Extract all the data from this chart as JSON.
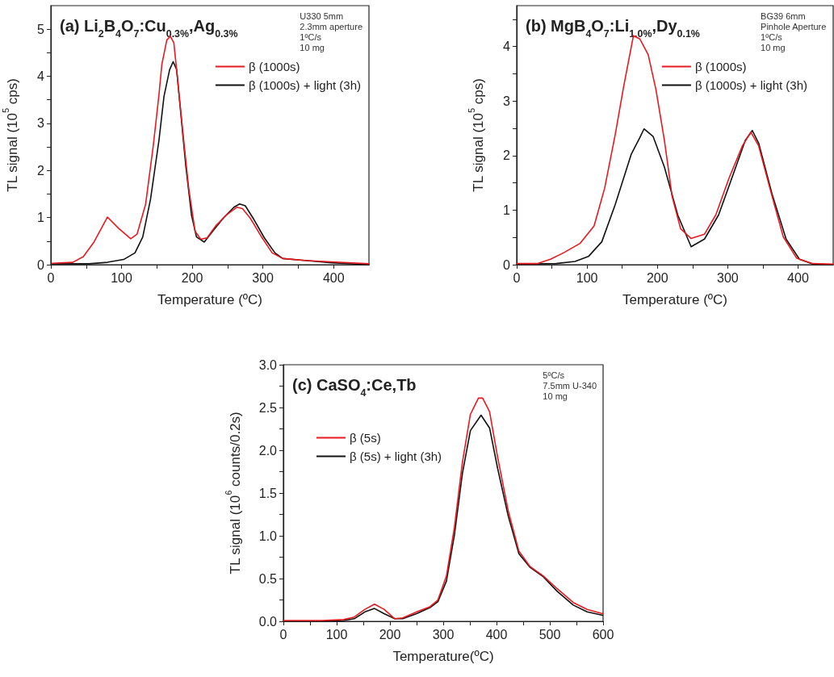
{
  "chart_data": [
    {
      "type": "line",
      "title": "(a) Li$_{2}$B$_{4}$O$_{7}$:Cu$_{0.3%}$,Ag$_{0.3%}$",
      "xlabel": "Temperature (ºC)",
      "ylabel": "TL signal (10$^{5}$ cps)",
      "annotations": [
        "U330 5mm",
        "2.3mm aperture",
        "1ºC/s",
        "10 mg"
      ],
      "xlim": [
        0,
        450
      ],
      "ylim": [
        0,
        5.5
      ],
      "xticks": [
        0,
        {
          "value": 50,
          "label": null
        },
        100,
        {
          "value": 150,
          "label": null
        },
        200,
        {
          "value": 250,
          "label": null
        },
        300,
        {
          "value": 350,
          "label": null
        },
        400
      ],
      "yticks": [
        0,
        {
          "value": 0.5,
          "label": null
        },
        1,
        {
          "value": 1.5,
          "label": null
        },
        2,
        {
          "value": 2.5,
          "label": null
        },
        3,
        {
          "value": 3.5,
          "label": null
        },
        4,
        {
          "value": 4.5,
          "label": null
        },
        5
      ],
      "grid": false,
      "legend": "top right",
      "marker": "none",
      "line_style": "solid",
      "series": [
        {
          "name": "β (1000s)",
          "color": "#e8191f",
          "x": [
            2,
            31,
            46,
            61,
            80,
            96,
            113,
            122,
            134,
            145,
            153,
            157,
            164,
            169,
            174,
            179,
            187,
            195,
            204,
            212,
            221,
            233,
            248,
            263,
            271,
            282,
            298,
            313,
            328,
            359,
            397,
            450
          ],
          "values": [
            0.03,
            0.05,
            0.17,
            0.48,
            1.01,
            0.77,
            0.55,
            0.65,
            1.28,
            2.54,
            3.62,
            4.25,
            4.77,
            4.85,
            4.71,
            3.97,
            2.77,
            1.62,
            0.71,
            0.54,
            0.57,
            0.82,
            1.05,
            1.22,
            1.19,
            0.99,
            0.59,
            0.25,
            0.13,
            0.09,
            0.06,
            0.02
          ]
        },
        {
          "name": "β (1000s) + light (3h)",
          "color": "#111111",
          "x": [
            2,
            54,
            80,
            103,
            119,
            130,
            141,
            153,
            160,
            168,
            173,
            178,
            183,
            191,
            199,
            206,
            217,
            229,
            244,
            259,
            267,
            275,
            286,
            302,
            317,
            328,
            359,
            397,
            450
          ],
          "values": [
            0.02,
            0.02,
            0.05,
            0.11,
            0.25,
            0.59,
            1.39,
            2.65,
            3.57,
            4.14,
            4.31,
            4.14,
            3.34,
            2.08,
            1.05,
            0.59,
            0.48,
            0.71,
            0.99,
            1.22,
            1.29,
            1.25,
            0.99,
            0.57,
            0.25,
            0.13,
            0.09,
            0.04,
            0
          ]
        }
      ]
    },
    {
      "type": "line",
      "title": "(b) MgB$_{4}$O$_{7}$:Li$_{1.0%}$,Dy$_{0.1%}$",
      "xlabel": "Temperature (ºC)",
      "ylabel": "TL signal (10$^{5}$ cps)",
      "annotations": [
        "BG39 6mm",
        "Pinhole Aperture",
        "1ºC/s",
        "10 mg"
      ],
      "xlim": [
        0,
        450
      ],
      "ylim": [
        0,
        4.75
      ],
      "xticks": [
        0,
        {
          "value": 50,
          "label": null
        },
        100,
        {
          "value": 150,
          "label": null
        },
        200,
        {
          "value": 250,
          "label": null
        },
        300,
        {
          "value": 350,
          "label": null
        },
        400
      ],
      "yticks": [
        0,
        {
          "value": 0.5,
          "label": null
        },
        1,
        {
          "value": 1.5,
          "label": null
        },
        2,
        {
          "value": 2.5,
          "label": null
        },
        3,
        {
          "value": 3.5,
          "label": null
        },
        4,
        {
          "value": 4.5,
          "label": null
        }
      ],
      "grid": false,
      "legend": "top right",
      "marker": "none",
      "line_style": "solid",
      "series": [
        {
          "name": "β (1000s)",
          "color": "#e8191f",
          "x": [
            0,
            29,
            48,
            67,
            90,
            110,
            125,
            140,
            152,
            163,
            166,
            175,
            187,
            198,
            210,
            221,
            233,
            248,
            267,
            283,
            302,
            321,
            333,
            344,
            360,
            379,
            398,
            421,
            450
          ],
          "values": [
            0.02,
            0.02,
            0.1,
            0.22,
            0.39,
            0.71,
            1.4,
            2.38,
            3.26,
            4.0,
            4.2,
            4.14,
            3.85,
            3.21,
            2.28,
            1.25,
            0.66,
            0.48,
            0.56,
            0.91,
            1.59,
            2.18,
            2.43,
            2.18,
            1.4,
            0.51,
            0.12,
            0.02,
            0.01
          ]
        },
        {
          "name": "β (1000s) + light (3h)",
          "color": "#111111",
          "x": [
            0,
            56,
            83,
            102,
            121,
            140,
            163,
            175,
            181,
            194,
            210,
            229,
            248,
            267,
            287,
            306,
            325,
            335,
            344,
            363,
            383,
            402,
            421,
            450
          ],
          "values": [
            0.01,
            0.02,
            0.06,
            0.15,
            0.42,
            1.1,
            2.03,
            2.33,
            2.49,
            2.35,
            1.79,
            0.91,
            0.33,
            0.47,
            0.91,
            1.59,
            2.28,
            2.46,
            2.23,
            1.3,
            0.47,
            0.1,
            0.01,
            0
          ]
        }
      ]
    },
    {
      "type": "line",
      "title": "(c) CaSO$_{4}$:Ce,Tb",
      "xlabel": "Temperature(ºC)",
      "ylabel": "TL signal (10$^{6}$ counts/0.2s)",
      "annotations": [
        "5ºC/s",
        "7.5mm U-340",
        "10 mg"
      ],
      "xlim": [
        0,
        600
      ],
      "ylim": [
        0,
        3
      ],
      "xticks": [
        0,
        {
          "value": 50,
          "label": null
        },
        100,
        {
          "value": 150,
          "label": null
        },
        200,
        {
          "value": 250,
          "label": null
        },
        300,
        {
          "value": 350,
          "label": null
        },
        400,
        {
          "value": 450,
          "label": null
        },
        500,
        {
          "value": 550,
          "label": null
        },
        600
      ],
      "yticks": [
        {
          "value": 0,
          "label": "0.0"
        },
        {
          "value": 0.25,
          "label": null
        },
        0.5,
        {
          "value": 0.75,
          "label": null
        },
        {
          "value": 1,
          "label": "1.0"
        },
        {
          "value": 1.25,
          "label": null
        },
        1.5,
        {
          "value": 1.75,
          "label": null
        },
        {
          "value": 2,
          "label": "2.0"
        },
        {
          "value": 2.25,
          "label": null
        },
        2.5,
        {
          "value": 2.75,
          "label": null
        },
        {
          "value": 3,
          "label": "3.0"
        }
      ],
      "grid": false,
      "legend": "top left",
      "marker": "none",
      "line_style": "solid",
      "series": [
        {
          "name": "β (5s)",
          "color": "#e8191f",
          "x": [
            0,
            72,
            113,
            133,
            153,
            171,
            189,
            209,
            224,
            250,
            275,
            290,
            306,
            321,
            336,
            351,
            366,
            374,
            387,
            402,
            422,
            442,
            463,
            488,
            514,
            544,
            570,
            599
          ],
          "values": [
            0.01,
            0.01,
            0.02,
            0.05,
            0.14,
            0.2,
            0.14,
            0.03,
            0.04,
            0.11,
            0.17,
            0.25,
            0.53,
            1.1,
            1.86,
            2.42,
            2.61,
            2.61,
            2.45,
            1.92,
            1.29,
            0.82,
            0.64,
            0.53,
            0.38,
            0.22,
            0.14,
            0.09
          ]
        },
        {
          "name": "β (5s) + light (3h)",
          "color": "#111111",
          "x": [
            0,
            72,
            113,
            133,
            153,
            171,
            189,
            209,
            224,
            250,
            275,
            290,
            306,
            321,
            336,
            351,
            371,
            387,
            402,
            422,
            442,
            463,
            488,
            514,
            544,
            570,
            599
          ],
          "values": [
            0,
            0,
            0.01,
            0.03,
            0.11,
            0.15,
            0.09,
            0.03,
            0.03,
            0.09,
            0.16,
            0.23,
            0.47,
            1.01,
            1.73,
            2.23,
            2.41,
            2.26,
            1.79,
            1.23,
            0.79,
            0.63,
            0.52,
            0.35,
            0.19,
            0.11,
            0.07
          ]
        }
      ]
    }
  ]
}
